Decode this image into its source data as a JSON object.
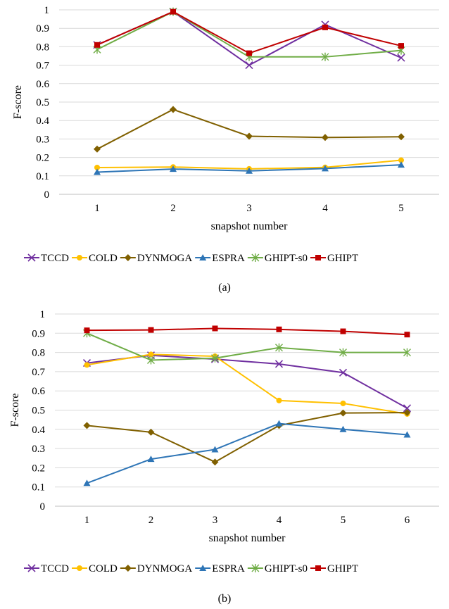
{
  "chart_data": [
    {
      "type": "line",
      "title": "",
      "xlabel": "snapshot number",
      "ylabel": "F-score",
      "categories": [
        "1",
        "2",
        "3",
        "4",
        "5"
      ],
      "ylim": [
        0,
        1
      ],
      "yticks": [
        "0",
        "0.1",
        "0.2",
        "0.3",
        "0.4",
        "0.5",
        "0.6",
        "0.7",
        "0.8",
        "0.9",
        "1"
      ],
      "grid": true,
      "legend_position": "bottom",
      "caption": "(a)",
      "series": [
        {
          "name": "TCCD",
          "color": "#7030a0",
          "marker": "x",
          "values": [
            0.81,
            0.99,
            0.7,
            0.92,
            0.74
          ]
        },
        {
          "name": "COLD",
          "color": "#ffc000",
          "marker": "circle",
          "values": [
            0.145,
            0.148,
            0.138,
            0.146,
            0.185
          ]
        },
        {
          "name": "DYNMOGA",
          "color": "#806000",
          "marker": "diamond",
          "values": [
            0.245,
            0.46,
            0.315,
            0.308,
            0.312
          ]
        },
        {
          "name": "ESPRA",
          "color": "#2e75b6",
          "marker": "triangle",
          "values": [
            0.12,
            0.137,
            0.127,
            0.14,
            0.16
          ]
        },
        {
          "name": "GHIPT-s0",
          "color": "#70ad47",
          "marker": "star",
          "values": [
            0.785,
            0.99,
            0.745,
            0.745,
            0.78
          ]
        },
        {
          "name": "GHIPT",
          "color": "#c00000",
          "marker": "square",
          "values": [
            0.81,
            0.99,
            0.765,
            0.905,
            0.805
          ]
        }
      ]
    },
    {
      "type": "line",
      "title": "",
      "xlabel": "snapshot number",
      "ylabel": "F-score",
      "categories": [
        "1",
        "2",
        "3",
        "4",
        "5",
        "6"
      ],
      "ylim": [
        0,
        1
      ],
      "yticks": [
        "0",
        "0.1",
        "0.2",
        "0.3",
        "0.4",
        "0.5",
        "0.6",
        "0.7",
        "0.8",
        "0.9",
        "1"
      ],
      "grid": true,
      "legend_position": "bottom",
      "caption": "(b)",
      "series": [
        {
          "name": "TCCD",
          "color": "#7030a0",
          "marker": "x",
          "values": [
            0.745,
            0.785,
            0.765,
            0.74,
            0.695,
            0.51
          ]
        },
        {
          "name": "COLD",
          "color": "#ffc000",
          "marker": "circle",
          "values": [
            0.735,
            0.79,
            0.78,
            0.55,
            0.535,
            0.48
          ]
        },
        {
          "name": "DYNMOGA",
          "color": "#806000",
          "marker": "diamond",
          "values": [
            0.42,
            0.385,
            0.23,
            0.42,
            0.485,
            0.487
          ]
        },
        {
          "name": "ESPRA",
          "color": "#2e75b6",
          "marker": "triangle",
          "values": [
            0.12,
            0.245,
            0.295,
            0.43,
            0.4,
            0.372
          ]
        },
        {
          "name": "GHIPT-s0",
          "color": "#70ad47",
          "marker": "star",
          "values": [
            0.9,
            0.76,
            0.77,
            0.825,
            0.8,
            0.8
          ]
        },
        {
          "name": "GHIPT",
          "color": "#c00000",
          "marker": "square",
          "values": [
            0.915,
            0.917,
            0.925,
            0.92,
            0.91,
            0.893
          ]
        }
      ]
    }
  ]
}
